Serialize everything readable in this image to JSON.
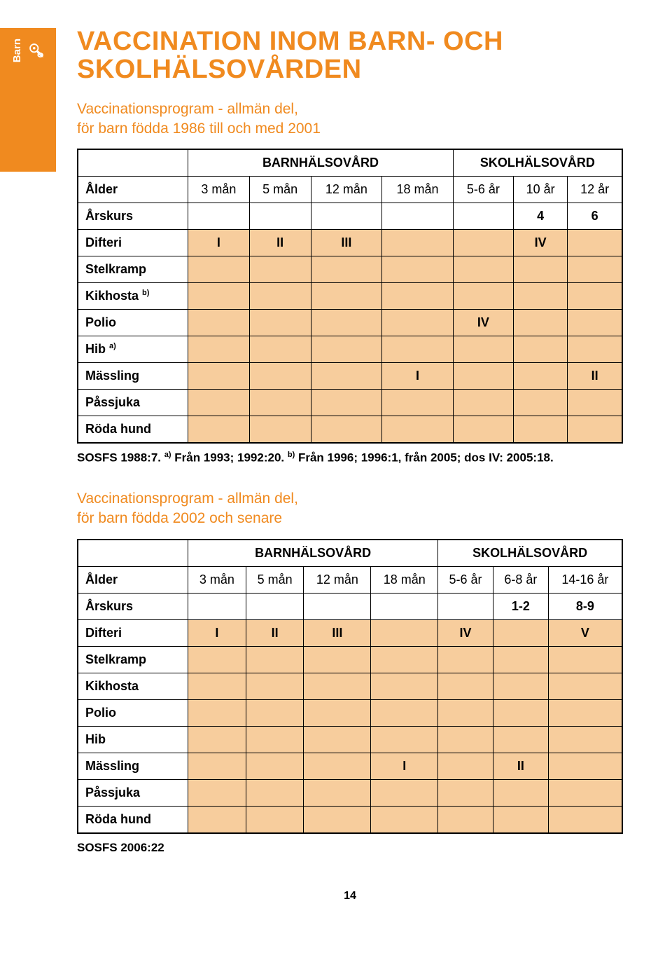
{
  "sideTab": {
    "label": "Barn"
  },
  "title": "VACCINATION INOM BARN- OCH SKOLHÄLSOVÅRDEN",
  "subtitle1_l1": "Vaccinationsprogram - allmän del,",
  "subtitle1_l2": "för barn födda 1986 till och med 2001",
  "table1": {
    "sectionHeaders": {
      "barn": "BARNHÄLSOVÅRD",
      "skol": "SKOLHÄLSOVÅRD"
    },
    "ageRow": {
      "label": "Ålder",
      "c": [
        "3 mån",
        "5 mån",
        "12 mån",
        "18 mån",
        "5-6 år",
        "10 år",
        "12 år"
      ]
    },
    "arskursRow": {
      "label": "Årskurs",
      "vals": [
        "",
        "",
        "",
        "",
        "",
        "4",
        "6"
      ]
    },
    "rows": [
      {
        "label": "Difteri",
        "cells": [
          "I",
          "II",
          "III",
          "",
          "",
          "IV",
          ""
        ]
      },
      {
        "label": "Stelkramp",
        "cells": [
          "",
          "",
          "",
          "",
          "",
          "",
          ""
        ]
      },
      {
        "label": "Kikhosta",
        "sup": "b)",
        "cells": [
          "",
          "",
          "",
          "",
          "",
          "",
          ""
        ]
      },
      {
        "label": "Polio",
        "cells": [
          "",
          "",
          "",
          "",
          "IV",
          "",
          ""
        ]
      },
      {
        "label": "Hib",
        "sup": "a)",
        "cells": [
          "",
          "",
          "",
          "",
          "",
          "",
          ""
        ]
      },
      {
        "label": "Mässling",
        "cells": [
          "",
          "",
          "",
          "I",
          "",
          "",
          "II"
        ]
      },
      {
        "label": "Påssjuka",
        "cells": [
          "",
          "",
          "",
          "",
          "",
          "",
          ""
        ]
      },
      {
        "label": "Röda hund",
        "cells": [
          "",
          "",
          "",
          "",
          "",
          "",
          ""
        ]
      }
    ]
  },
  "footnote1": {
    "prefix": "SOSFS 1988:7. ",
    "a_sup": "a)",
    "a_text": " Från 1993; 1992:20. ",
    "b_sup": "b)",
    "b_text": " Från 1996; 1996:1, från 2005; dos IV: 2005:18."
  },
  "subtitle2_l1": "Vaccinationsprogram - allmän del,",
  "subtitle2_l2": "för barn födda 2002 och senare",
  "table2": {
    "sectionHeaders": {
      "barn": "BARNHÄLSOVÅRD",
      "skol": "SKOLHÄLSOVÅRD"
    },
    "ageRow": {
      "label": "Ålder",
      "c": [
        "3 mån",
        "5 mån",
        "12 mån",
        "18 mån",
        "5-6 år",
        "6-8 år",
        "14-16 år"
      ]
    },
    "arskursRow": {
      "label": "Årskurs",
      "vals": [
        "",
        "",
        "",
        "",
        "",
        "1-2",
        "8-9"
      ]
    },
    "rows": [
      {
        "label": "Difteri",
        "cells": [
          "I",
          "II",
          "III",
          "",
          "IV",
          "",
          "V"
        ]
      },
      {
        "label": "Stelkramp",
        "cells": [
          "",
          "",
          "",
          "",
          "",
          "",
          ""
        ]
      },
      {
        "label": "Kikhosta",
        "cells": [
          "",
          "",
          "",
          "",
          "",
          "",
          ""
        ]
      },
      {
        "label": "Polio",
        "cells": [
          "",
          "",
          "",
          "",
          "",
          "",
          ""
        ]
      },
      {
        "label": "Hib",
        "cells": [
          "",
          "",
          "",
          "",
          "",
          "",
          ""
        ]
      },
      {
        "label": "Mässling",
        "cells": [
          "",
          "",
          "",
          "I",
          "",
          "II",
          ""
        ]
      },
      {
        "label": "Påssjuka",
        "cells": [
          "",
          "",
          "",
          "",
          "",
          "",
          ""
        ]
      },
      {
        "label": "Röda hund",
        "cells": [
          "",
          "",
          "",
          "",
          "",
          "",
          ""
        ]
      }
    ]
  },
  "footnote2": "SOSFS 2006:22",
  "pageNumber": "14",
  "colors": {
    "accent": "#f08a1f",
    "peach": "#f7cd9d",
    "border": "#000000"
  }
}
